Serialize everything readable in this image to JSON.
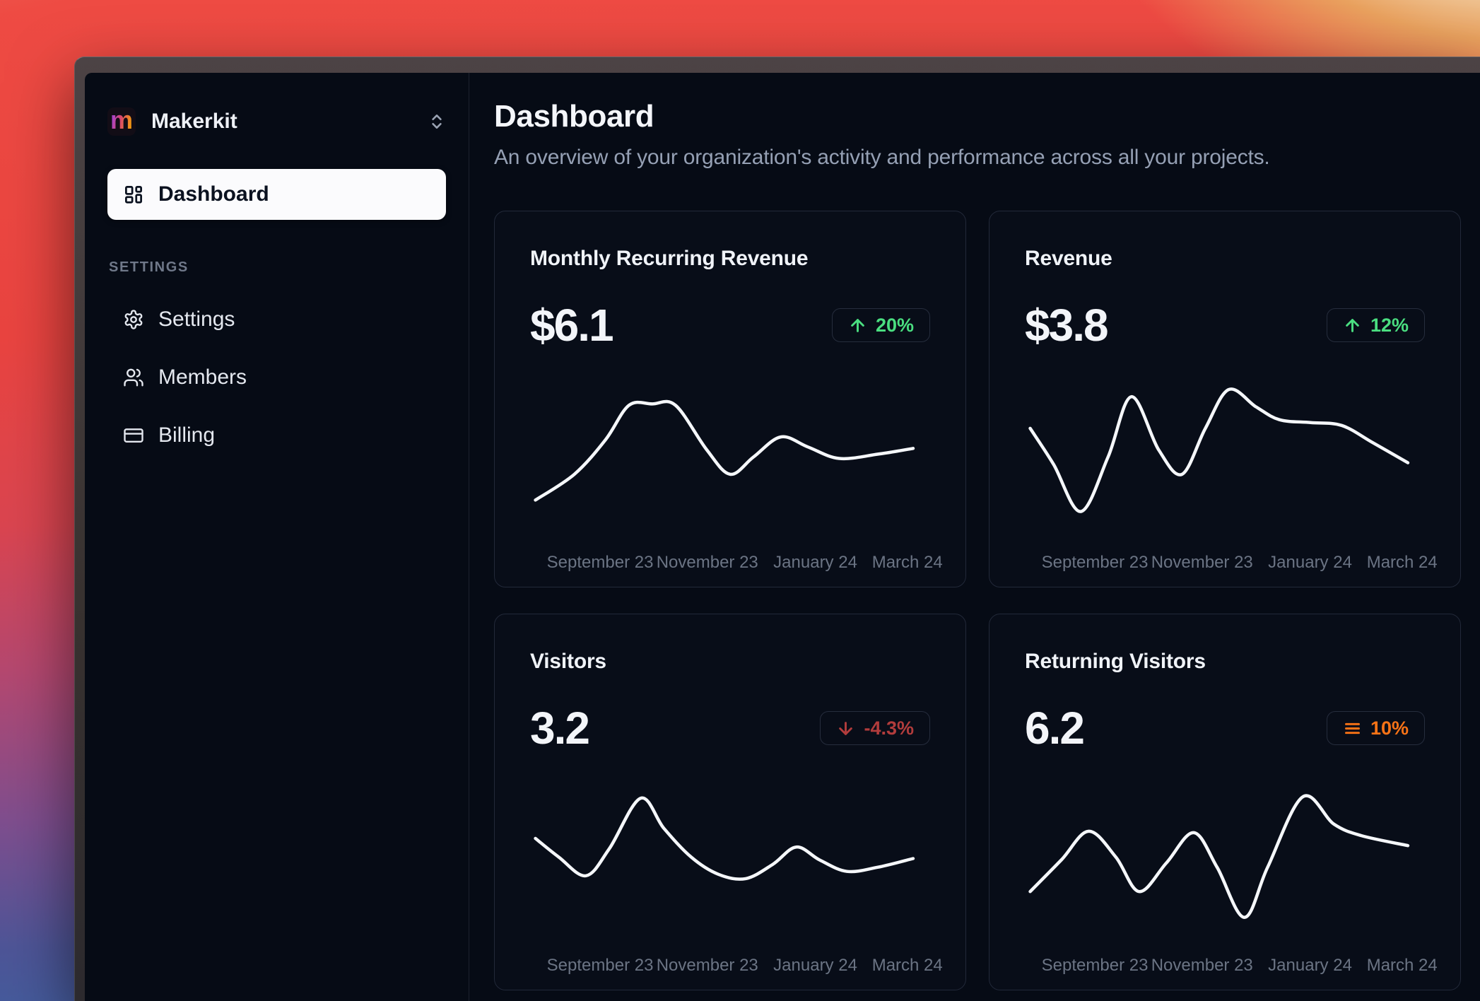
{
  "sidebar": {
    "workspace": {
      "name": "Makerkit",
      "logo_letter": "m"
    },
    "nav": [
      {
        "label": "Dashboard",
        "icon": "dashboard-grid",
        "active": true
      }
    ],
    "section_label": "SETTINGS",
    "settings_nav": [
      {
        "label": "Settings",
        "icon": "gear"
      },
      {
        "label": "Members",
        "icon": "users"
      },
      {
        "label": "Billing",
        "icon": "credit-card"
      }
    ]
  },
  "main": {
    "title": "Dashboard",
    "subtitle": "An overview of your organization's activity and performance across all your projects."
  },
  "colors": {
    "trend_up": "#4ade80",
    "trend_down": "#b23c3c",
    "trend_flat": "#f97316",
    "line": "#f5f7fa",
    "axis_label": "#6b7484"
  },
  "cards": [
    {
      "title": "Monthly Recurring Revenue",
      "value": "$6.1",
      "badge": {
        "label": "20%",
        "trend": "up",
        "color": "#4ade80"
      }
    },
    {
      "title": "Revenue",
      "value": "$3.8",
      "badge": {
        "label": "12%",
        "trend": "up",
        "color": "#4ade80"
      }
    },
    {
      "title": "Visitors",
      "value": "3.2",
      "badge": {
        "label": "-4.3%",
        "trend": "down",
        "color": "#b23c3c"
      }
    },
    {
      "title": "Returning Visitors",
      "value": "6.2",
      "badge": {
        "label": "10%",
        "trend": "flat",
        "color": "#f97316"
      }
    }
  ],
  "chart_data": [
    {
      "type": "line",
      "card": "Monthly Recurring Revenue",
      "legend": null,
      "grid": false,
      "x_labels": [
        "September 23",
        "November 23",
        "January 24",
        "March 24"
      ],
      "points": [
        [
          0,
          0.2
        ],
        [
          0.1,
          0.38
        ],
        [
          0.18,
          0.62
        ],
        [
          0.24,
          0.86
        ],
        [
          0.3,
          0.87
        ],
        [
          0.36,
          0.86
        ],
        [
          0.44,
          0.55
        ],
        [
          0.5,
          0.38
        ],
        [
          0.56,
          0.5
        ],
        [
          0.63,
          0.64
        ],
        [
          0.7,
          0.57
        ],
        [
          0.78,
          0.49
        ],
        [
          0.88,
          0.52
        ],
        [
          0.97,
          0.56
        ]
      ]
    },
    {
      "type": "line",
      "card": "Revenue",
      "legend": null,
      "grid": false,
      "x_labels": [
        "September 23",
        "November 23",
        "January 24",
        "March 24"
      ],
      "points": [
        [
          0,
          0.7
        ],
        [
          0.06,
          0.45
        ],
        [
          0.13,
          0.12
        ],
        [
          0.2,
          0.5
        ],
        [
          0.26,
          0.92
        ],
        [
          0.33,
          0.55
        ],
        [
          0.39,
          0.38
        ],
        [
          0.45,
          0.7
        ],
        [
          0.51,
          0.97
        ],
        [
          0.58,
          0.85
        ],
        [
          0.64,
          0.76
        ],
        [
          0.72,
          0.74
        ],
        [
          0.8,
          0.72
        ],
        [
          0.88,
          0.6
        ],
        [
          0.97,
          0.46
        ]
      ]
    },
    {
      "type": "line",
      "card": "Visitors",
      "legend": null,
      "grid": false,
      "x_labels": [
        "September 23",
        "November 23",
        "January 24",
        "March 24"
      ],
      "points": [
        [
          0,
          0.65
        ],
        [
          0.06,
          0.52
        ],
        [
          0.13,
          0.39
        ],
        [
          0.19,
          0.58
        ],
        [
          0.27,
          0.93
        ],
        [
          0.33,
          0.72
        ],
        [
          0.4,
          0.52
        ],
        [
          0.47,
          0.4
        ],
        [
          0.54,
          0.37
        ],
        [
          0.61,
          0.47
        ],
        [
          0.67,
          0.59
        ],
        [
          0.73,
          0.5
        ],
        [
          0.8,
          0.42
        ],
        [
          0.88,
          0.45
        ],
        [
          0.97,
          0.51
        ]
      ]
    },
    {
      "type": "line",
      "card": "Returning Visitors",
      "legend": null,
      "grid": false,
      "x_labels": [
        "September 23",
        "November 23",
        "January 24",
        "March 24"
      ],
      "points": [
        [
          0,
          0.28
        ],
        [
          0.08,
          0.5
        ],
        [
          0.15,
          0.7
        ],
        [
          0.22,
          0.52
        ],
        [
          0.28,
          0.28
        ],
        [
          0.35,
          0.48
        ],
        [
          0.42,
          0.69
        ],
        [
          0.48,
          0.45
        ],
        [
          0.55,
          0.1
        ],
        [
          0.61,
          0.45
        ],
        [
          0.7,
          0.94
        ],
        [
          0.78,
          0.75
        ],
        [
          0.85,
          0.67
        ],
        [
          0.97,
          0.6
        ]
      ]
    }
  ]
}
